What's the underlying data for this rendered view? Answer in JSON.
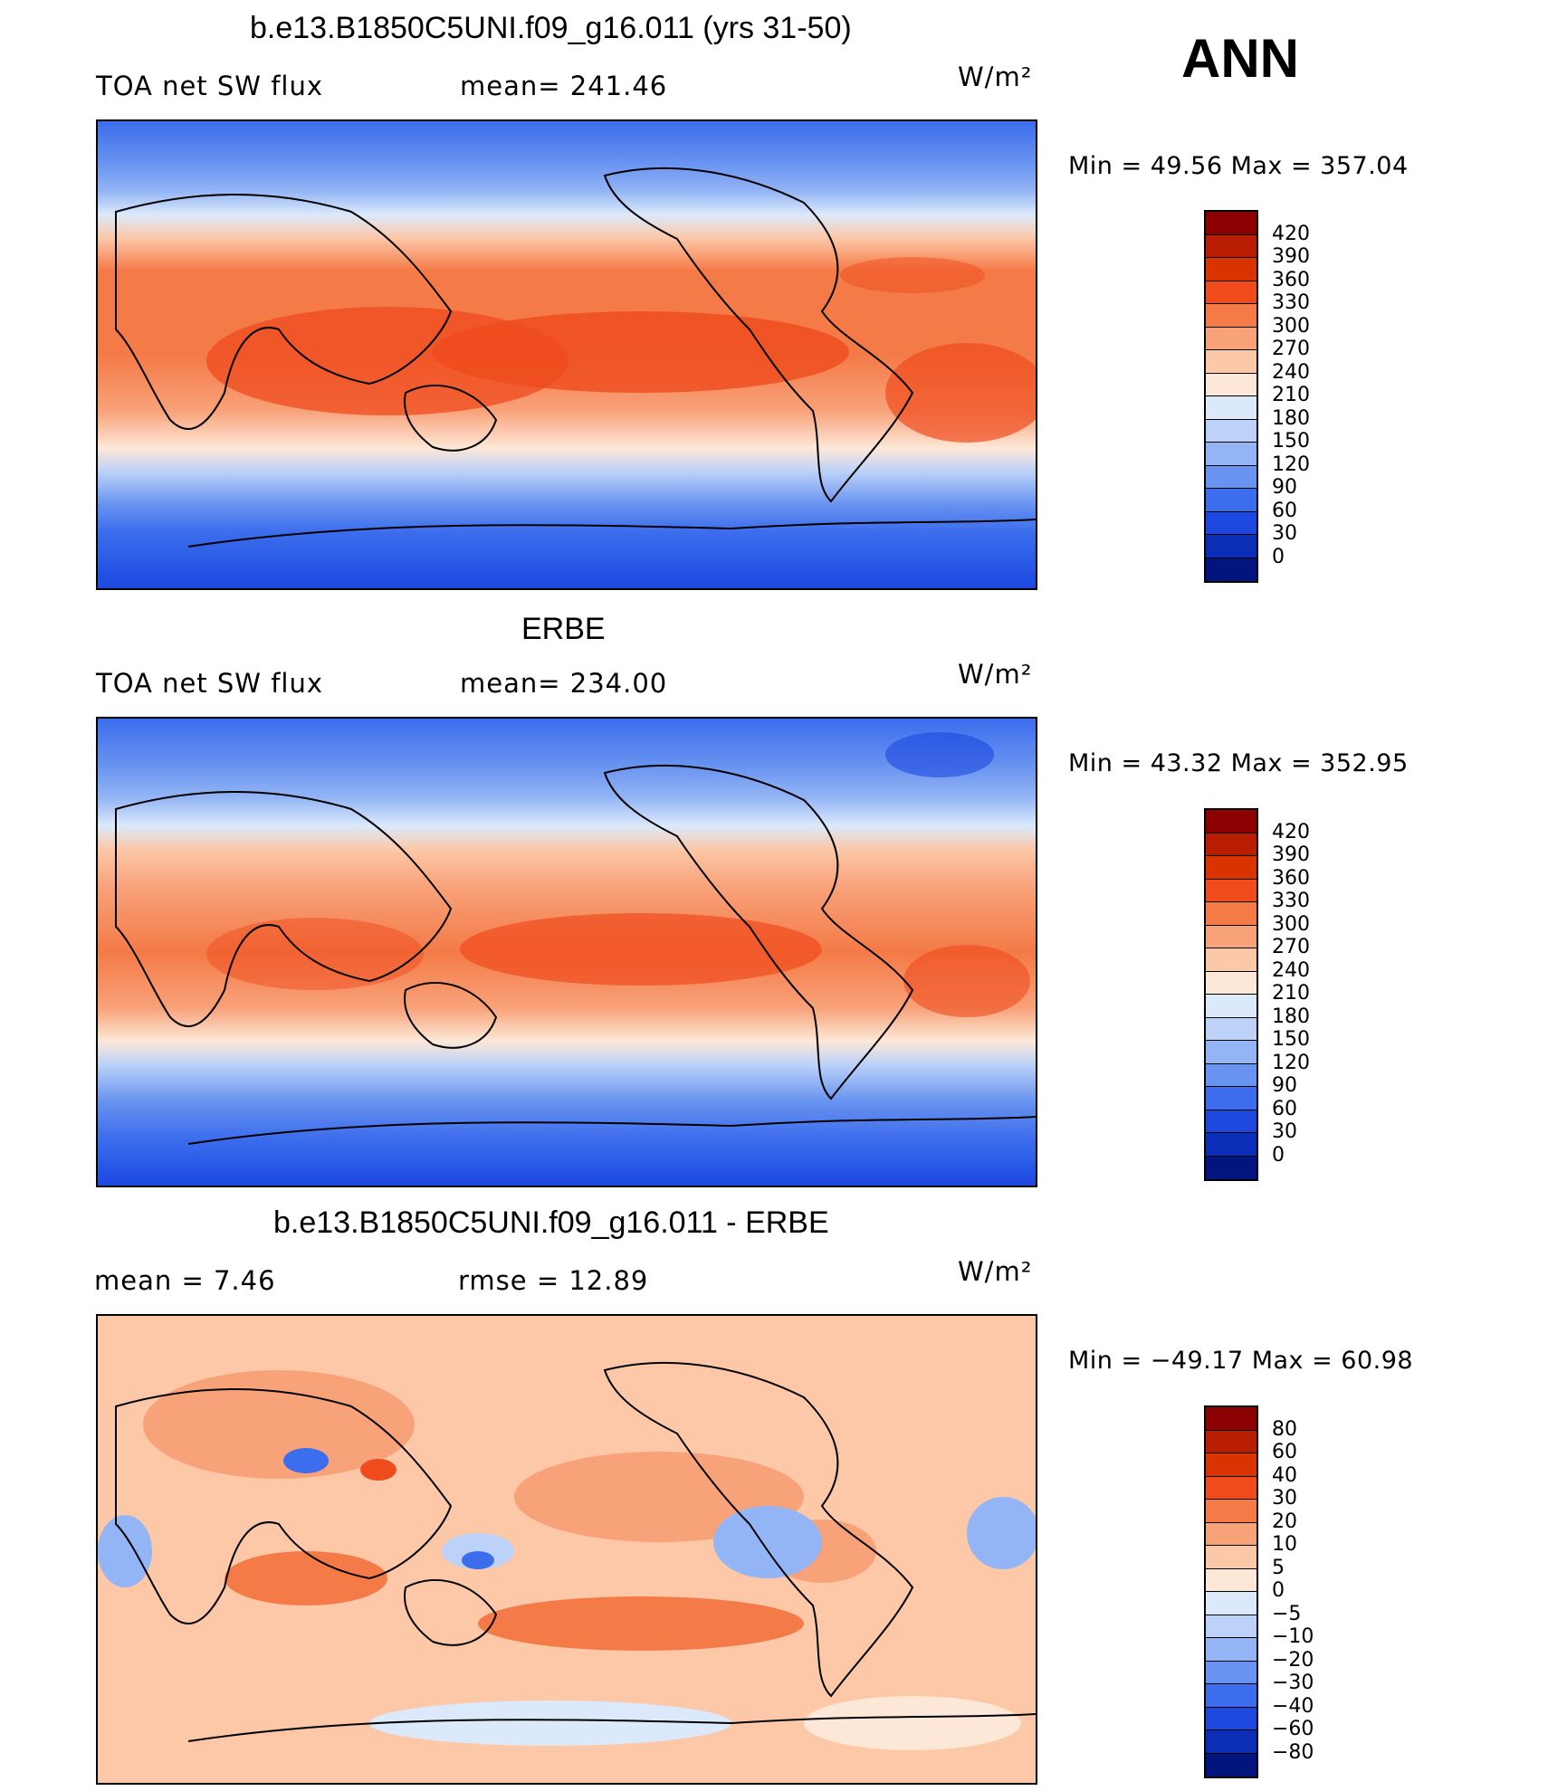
{
  "season": "ANN",
  "units": "W/m²",
  "panels": [
    {
      "title": "b.e13.B1850C5UNI.f09_g16.011 (yrs 31-50)",
      "left_label": "TOA net SW flux",
      "mid_label": "mean= 241.46",
      "units": "W/m²",
      "stats": "Min =   49.56 Max = 357.04",
      "colorbar": {
        "levels": [
          "420",
          "390",
          "360",
          "330",
          "300",
          "270",
          "240",
          "210",
          "180",
          "150",
          "120",
          "90",
          "60",
          "30",
          "0"
        ],
        "colors": [
          "#8b0000",
          "#b81d00",
          "#d93300",
          "#ef4b1d",
          "#f47a47",
          "#f8a27a",
          "#fcc8a8",
          "#fde8d7",
          "#dbe9fb",
          "#bcd2f8",
          "#94b5f5",
          "#6893f0",
          "#3c6ded",
          "#1c48e0",
          "#0a2eb8",
          "#02157f"
        ]
      }
    },
    {
      "title": "ERBE",
      "left_label": "TOA net SW flux",
      "mid_label": "mean= 234.00",
      "units": "W/m²",
      "stats": "Min =   43.32 Max = 352.95",
      "colorbar": {
        "levels": [
          "420",
          "390",
          "360",
          "330",
          "300",
          "270",
          "240",
          "210",
          "180",
          "150",
          "120",
          "90",
          "60",
          "30",
          "0"
        ],
        "colors": [
          "#8b0000",
          "#b81d00",
          "#d93300",
          "#ef4b1d",
          "#f47a47",
          "#f8a27a",
          "#fcc8a8",
          "#fde8d7",
          "#dbe9fb",
          "#bcd2f8",
          "#94b5f5",
          "#6893f0",
          "#3c6ded",
          "#1c48e0",
          "#0a2eb8",
          "#02157f"
        ]
      }
    },
    {
      "title": "b.e13.B1850C5UNI.f09_g16.011 - ERBE",
      "left_label": "mean =     7.46",
      "mid_label": "rmse =    12.89",
      "units": "W/m²",
      "stats": "Min = −49.17 Max =   60.98",
      "colorbar": {
        "levels": [
          "80",
          "60",
          "40",
          "30",
          "20",
          "10",
          "5",
          "0",
          "−5",
          "−10",
          "−20",
          "−30",
          "−40",
          "−60",
          "−80"
        ],
        "colors": [
          "#8b0000",
          "#b81d00",
          "#d93300",
          "#ef4b1d",
          "#f47a47",
          "#f8a27a",
          "#fcc8a8",
          "#fde8d7",
          "#dbe9fb",
          "#bcd2f8",
          "#94b5f5",
          "#6893f0",
          "#3c6ded",
          "#1c48e0",
          "#0a2eb8",
          "#02157f"
        ]
      }
    }
  ]
}
